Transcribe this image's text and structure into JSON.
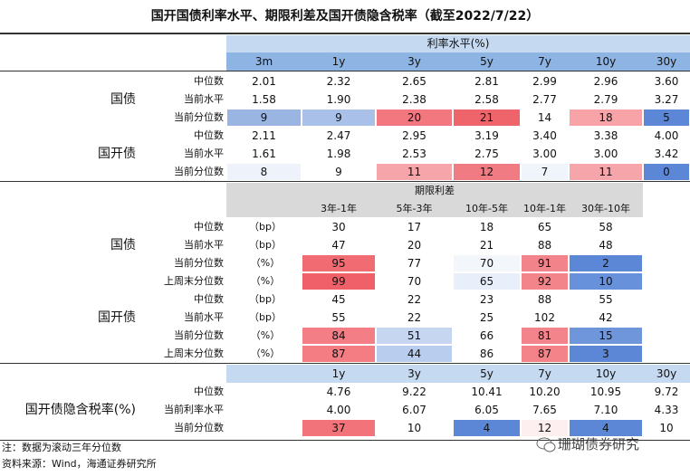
{
  "title": "国开国债利率水平、期限利差及国开债隐含税率（截至2022/7/22）",
  "section1": {
    "header": "利率水平(%)",
    "columns": [
      "3m",
      "1y",
      "3y",
      "5y",
      "7y",
      "10y",
      "30y"
    ],
    "groups": [
      {
        "name": "国债",
        "rows": [
          {
            "label": "中位数",
            "values": [
              "2.01",
              "2.32",
              "2.65",
              "2.81",
              "2.99",
              "2.96",
              "3.60"
            ]
          },
          {
            "label": "当前水平",
            "values": [
              "1.58",
              "1.90",
              "2.38",
              "2.58",
              "2.77",
              "2.79",
              "3.27"
            ]
          },
          {
            "label": "当前分位数",
            "values": [
              "9",
              "9",
              "20",
              "21",
              "14",
              "18",
              "5"
            ],
            "colors": [
              "#9bb5e2",
              "#a9c1e8",
              "#f2777e",
              "#ef636b",
              null,
              "#f7a3a8",
              "#5b87d6"
            ]
          }
        ]
      },
      {
        "name": "国开债",
        "rows": [
          {
            "label": "中位数",
            "values": [
              "2.11",
              "2.47",
              "2.95",
              "3.19",
              "3.40",
              "3.38",
              "4.00"
            ]
          },
          {
            "label": "当前水平",
            "values": [
              "1.61",
              "1.98",
              "2.53",
              "2.75",
              "3.00",
              "3.00",
              "3.42"
            ]
          },
          {
            "label": "当前分位数",
            "values": [
              "8",
              "9",
              "11",
              "12",
              "7",
              "11",
              "0"
            ],
            "colors": [
              "#eef2fb",
              null,
              "#f6a5aa",
              "#f17b82",
              "#f0f4fb",
              "#f6a5aa",
              "#5b87d6"
            ]
          }
        ]
      }
    ]
  },
  "section2": {
    "header": "期限利差",
    "columns": [
      "3年-1年",
      "5年-3年",
      "10年-5年",
      "10年-1年",
      "30年-10年"
    ],
    "groups": [
      {
        "name": "国债",
        "rows": [
          {
            "label": "中位数",
            "unit": "（bp）",
            "values": [
              "30",
              "17",
              "18",
              "65",
              "58"
            ]
          },
          {
            "label": "当前水平",
            "unit": "（bp）",
            "values": [
              "47",
              "20",
              "21",
              "88",
              "48"
            ]
          },
          {
            "label": "当前分位数",
            "unit": "（%）",
            "values": [
              "95",
              "77",
              "70",
              "91",
              "2"
            ],
            "colors": [
              "#f06b72",
              null,
              "#f3f6fb",
              "#f2838a",
              "#5b87d6"
            ]
          },
          {
            "label": "上周末分位数",
            "unit": "（%）",
            "values": [
              "99",
              "70",
              "65",
              "92",
              "10"
            ],
            "colors": [
              "#f06068",
              null,
              "#e9effa",
              "#f2848a",
              "#6791da"
            ]
          }
        ]
      },
      {
        "name": "国开债",
        "rows": [
          {
            "label": "中位数",
            "unit": "（bp）",
            "values": [
              "45",
              "22",
              "23",
              "88",
              "55"
            ]
          },
          {
            "label": "当前水平",
            "unit": "（bp）",
            "values": [
              "55",
              "22",
              "25",
              "102",
              "42"
            ]
          },
          {
            "label": "当前分位数",
            "unit": "（%）",
            "values": [
              "84",
              "51",
              "66",
              "81",
              "15"
            ],
            "colors": [
              "#f47e85",
              "#c6d6f0",
              null,
              "#f4848b",
              "#6f96db"
            ]
          },
          {
            "label": "上周末分位数",
            "unit": "（%）",
            "values": [
              "87",
              "44",
              "86",
              "87",
              "3"
            ],
            "colors": [
              "#f47c83",
              "#b9cdee",
              null,
              "#f38289",
              "#5b87d6"
            ]
          }
        ]
      }
    ]
  },
  "section3": {
    "name": "国开债隐含税率(%)",
    "columns": [
      "1y",
      "3y",
      "5y",
      "7y",
      "10y",
      "30y"
    ],
    "rows": [
      {
        "label": "中位数",
        "values": [
          "4.76",
          "9.22",
          "10.41",
          "10.20",
          "10.95",
          "9.72"
        ]
      },
      {
        "label": "当前利率水平",
        "values": [
          "4.00",
          "6.07",
          "6.05",
          "7.65",
          "7.10",
          "4.33"
        ]
      },
      {
        "label": "当前分位数",
        "values": [
          "37",
          "10",
          "4",
          "12",
          "4",
          "10"
        ],
        "colors": [
          "#f2737a",
          null,
          "#5b87d6",
          "#fdeeef",
          "#5b87d6",
          null
        ]
      }
    ]
  },
  "notes": [
    "注：数据为滚动三年分位数",
    "资料来源：Wind，海通证券研究所"
  ],
  "watermark": "珊瑚债券研究"
}
